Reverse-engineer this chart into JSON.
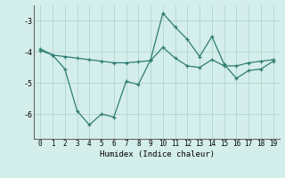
{
  "line1_x": [
    0,
    1,
    2,
    3,
    4,
    5,
    6,
    7,
    8,
    9,
    10,
    11,
    12,
    13,
    14,
    15,
    16,
    17,
    18,
    19
  ],
  "line1_y": [
    -3.9,
    -4.1,
    -4.15,
    -4.2,
    -4.25,
    -4.3,
    -4.35,
    -4.35,
    -4.32,
    -4.28,
    -3.85,
    -4.2,
    -4.45,
    -4.5,
    -4.25,
    -4.45,
    -4.45,
    -4.35,
    -4.3,
    -4.25
  ],
  "line2_x": [
    0,
    1,
    2,
    3,
    4,
    5,
    6,
    7,
    8,
    9,
    10,
    11,
    12,
    13,
    14,
    15,
    16,
    17,
    18,
    19
  ],
  "line2_y": [
    -3.95,
    -4.1,
    -4.55,
    -5.9,
    -6.35,
    -6.0,
    -6.1,
    -4.95,
    -5.05,
    -4.25,
    -2.75,
    -3.2,
    -3.6,
    -4.15,
    -3.5,
    -4.4,
    -4.85,
    -4.6,
    -4.55,
    -4.3
  ],
  "color": "#2e7d72",
  "bg_color": "#d4eeeb",
  "xlabel": "Humidex (Indice chaleur)",
  "ylim": [
    -6.8,
    -2.5
  ],
  "yticks": [
    -6,
    -5,
    -4,
    -3
  ],
  "xticks": [
    0,
    1,
    2,
    3,
    4,
    5,
    6,
    7,
    8,
    9,
    10,
    11,
    12,
    13,
    14,
    15,
    16,
    17,
    18,
    19
  ],
  "grid_color": "#b8d8d4",
  "marker": "+",
  "linewidth": 0.9,
  "markersize": 3.5,
  "tick_fontsize": 5.5,
  "xlabel_fontsize": 6.5,
  "spine_color": "#666666"
}
